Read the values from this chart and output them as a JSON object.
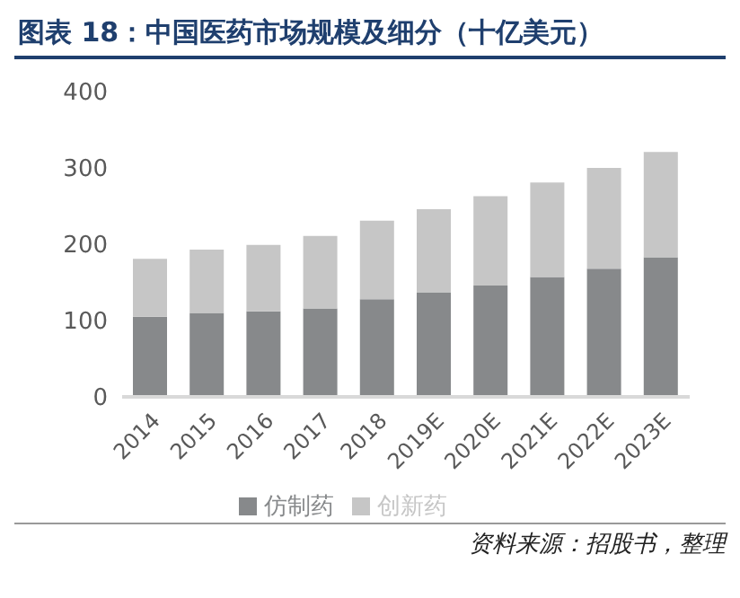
{
  "chart_data": {
    "type": "bar",
    "title": "图表 18：中国医药市场规模及细分（十亿美元）",
    "stacked": true,
    "categories": [
      "2014",
      "2015",
      "2016",
      "2017",
      "2018",
      "2019E",
      "2020E",
      "2021E",
      "2022E",
      "2023E"
    ],
    "series": [
      {
        "name": "仿制药",
        "color": "#87898b",
        "values": [
          105,
          110,
          112,
          116,
          128,
          137,
          146,
          157,
          168,
          183
        ]
      },
      {
        "name": "创新药",
        "color": "#c6c6c6",
        "values": [
          76,
          83,
          87,
          95,
          103,
          109,
          117,
          124,
          132,
          138
        ]
      }
    ],
    "ylim": [
      0,
      400
    ],
    "yticks": [
      0,
      100,
      200,
      300,
      400
    ],
    "grid": false,
    "legend": "bottom",
    "annotations": [
      "资料来源：招股书，整理"
    ]
  }
}
